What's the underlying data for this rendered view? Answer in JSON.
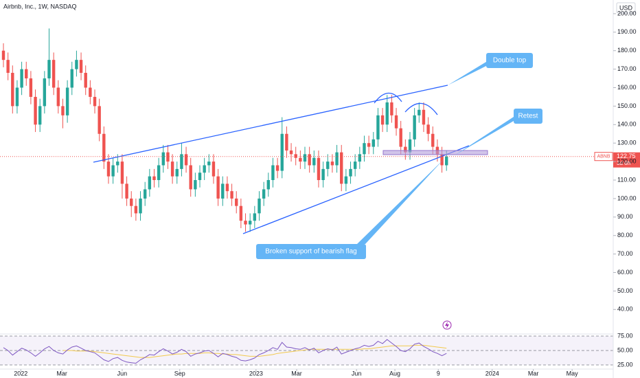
{
  "header": {
    "title": "Airbnb, Inc., 1W, NASDAQ",
    "currency": "USD"
  },
  "chart_data": {
    "type": "candlestick",
    "symbol": "ABNB",
    "countdown": "3d 6h",
    "up_color": "#26a69a",
    "down_color": "#ef5350",
    "candles": [
      [
        180,
        184,
        171,
        175
      ],
      [
        175,
        179,
        164,
        168
      ],
      [
        168,
        172,
        146,
        150
      ],
      [
        150,
        164,
        146,
        160
      ],
      [
        160,
        174,
        156,
        170
      ],
      [
        170,
        174,
        161,
        165
      ],
      [
        165,
        169,
        151,
        155
      ],
      [
        155,
        159,
        136,
        140
      ],
      [
        140,
        154,
        136,
        150
      ],
      [
        150,
        169,
        146,
        165
      ],
      [
        165,
        192,
        161,
        175
      ],
      [
        175,
        179,
        156,
        160
      ],
      [
        160,
        164,
        146,
        150
      ],
      [
        150,
        154,
        138,
        145
      ],
      [
        145,
        164,
        141,
        160
      ],
      [
        160,
        174,
        156,
        170
      ],
      [
        170,
        180,
        166,
        175
      ],
      [
        175,
        179,
        164,
        168
      ],
      [
        168,
        172,
        156,
        160
      ],
      [
        160,
        164,
        151,
        155
      ],
      [
        155,
        159,
        146,
        150
      ],
      [
        150,
        154,
        131,
        135
      ],
      [
        135,
        139,
        116,
        120
      ],
      [
        120,
        124,
        108,
        112
      ],
      [
        112,
        122,
        108,
        118
      ],
      [
        118,
        124,
        114,
        120
      ],
      [
        120,
        124,
        100,
        108
      ],
      [
        108,
        112,
        96,
        100
      ],
      [
        100,
        104,
        90,
        96
      ],
      [
        96,
        100,
        88,
        92
      ],
      [
        92,
        104,
        88,
        100
      ],
      [
        100,
        109,
        96,
        105
      ],
      [
        105,
        116,
        101,
        112
      ],
      [
        112,
        116,
        106,
        110
      ],
      [
        110,
        122,
        106,
        118
      ],
      [
        118,
        129,
        114,
        125
      ],
      [
        125,
        129,
        116,
        120
      ],
      [
        120,
        124,
        108,
        112
      ],
      [
        112,
        120,
        108,
        116
      ],
      [
        116,
        130,
        112,
        124
      ],
      [
        124,
        128,
        114,
        118
      ],
      [
        118,
        122,
        101,
        105
      ],
      [
        105,
        114,
        101,
        110
      ],
      [
        110,
        118,
        106,
        114
      ],
      [
        114,
        122,
        110,
        118
      ],
      [
        118,
        124,
        114,
        120
      ],
      [
        120,
        124,
        108,
        112
      ],
      [
        112,
        116,
        96,
        100
      ],
      [
        100,
        112,
        96,
        108
      ],
      [
        108,
        112,
        100,
        104
      ],
      [
        104,
        108,
        96,
        100
      ],
      [
        100,
        104,
        92,
        96
      ],
      [
        96,
        100,
        84,
        88
      ],
      [
        88,
        92,
        82,
        86
      ],
      [
        86,
        92,
        82,
        88
      ],
      [
        88,
        96,
        84,
        92
      ],
      [
        92,
        104,
        88,
        100
      ],
      [
        100,
        109,
        96,
        105
      ],
      [
        105,
        114,
        101,
        110
      ],
      [
        110,
        122,
        106,
        118
      ],
      [
        118,
        122,
        111,
        115
      ],
      [
        115,
        144,
        111,
        135
      ],
      [
        135,
        139,
        122,
        126
      ],
      [
        126,
        130,
        120,
        124
      ],
      [
        124,
        128,
        118,
        122
      ],
      [
        122,
        126,
        116,
        120
      ],
      [
        120,
        128,
        116,
        124
      ],
      [
        124,
        128,
        114,
        118
      ],
      [
        118,
        126,
        114,
        122
      ],
      [
        122,
        126,
        106,
        110
      ],
      [
        110,
        120,
        106,
        116
      ],
      [
        116,
        124,
        112,
        120
      ],
      [
        120,
        124,
        114,
        118
      ],
      [
        118,
        129,
        114,
        125
      ],
      [
        125,
        129,
        104,
        108
      ],
      [
        108,
        116,
        104,
        112
      ],
      [
        112,
        120,
        108,
        116
      ],
      [
        116,
        124,
        112,
        120
      ],
      [
        120,
        128,
        116,
        124
      ],
      [
        124,
        134,
        120,
        130
      ],
      [
        130,
        134,
        124,
        128
      ],
      [
        128,
        136,
        124,
        132
      ],
      [
        132,
        149,
        128,
        145
      ],
      [
        145,
        149,
        136,
        140
      ],
      [
        140,
        156,
        136,
        152
      ],
      [
        152,
        156,
        141,
        145
      ],
      [
        145,
        149,
        134,
        138
      ],
      [
        138,
        142,
        124,
        128
      ],
      [
        128,
        132,
        121,
        125
      ],
      [
        125,
        136,
        121,
        132
      ],
      [
        132,
        149,
        128,
        145
      ],
      [
        145,
        152,
        141,
        148
      ],
      [
        148,
        152,
        136,
        140
      ],
      [
        140,
        144,
        131,
        135
      ],
      [
        135,
        139,
        124,
        128
      ],
      [
        128,
        132,
        120,
        124
      ],
      [
        124,
        128,
        114,
        118
      ],
      [
        118,
        126,
        115,
        122.75
      ]
    ],
    "xlim": [
      -0.75,
      133.5
    ],
    "xticks": [
      {
        "value": 3.8,
        "label": "2022"
      },
      {
        "value": 12.8,
        "label": "Mar"
      },
      {
        "value": 26,
        "label": "Jun"
      },
      {
        "value": 38.6,
        "label": "Sep"
      },
      {
        "value": 55.3,
        "label": "2023"
      },
      {
        "value": 64.2,
        "label": "Mar"
      },
      {
        "value": 77.3,
        "label": "Jun"
      },
      {
        "value": 85.7,
        "label": "Aug"
      },
      {
        "value": 95.2,
        "label": "9"
      },
      {
        "value": 107,
        "label": "2024"
      },
      {
        "value": 116,
        "label": "Mar"
      },
      {
        "value": 124.5,
        "label": "May"
      }
    ],
    "ylim": [
      27.1,
      207.4
    ],
    "yticks": [
      {
        "value": 40,
        "label": "40.00"
      },
      {
        "value": 50,
        "label": "50.00"
      },
      {
        "value": 60,
        "label": "60.00"
      },
      {
        "value": 70,
        "label": "70.00"
      },
      {
        "value": 80,
        "label": "80.00"
      },
      {
        "value": 90,
        "label": "90.00"
      },
      {
        "value": 100,
        "label": "100.00"
      },
      {
        "value": 110,
        "label": "110.00"
      },
      {
        "value": 120,
        "label": "120.00"
      },
      {
        "value": 130,
        "label": "130.00"
      },
      {
        "value": 140,
        "label": "140.00"
      },
      {
        "value": 150,
        "label": "150.00"
      },
      {
        "value": 160,
        "label": "160.00"
      },
      {
        "value": 170,
        "label": "170.00"
      },
      {
        "value": 180,
        "label": "180.00"
      },
      {
        "value": 190,
        "label": "190.00"
      },
      {
        "value": 200,
        "label": "200.00"
      }
    ],
    "grid": false,
    "annotations": [
      "Double top",
      "Retest",
      "Broken support of bearish flag"
    ],
    "rsi": {
      "color": "#7e57c2",
      "ma_color": "#f2c94c",
      "values": [
        55,
        50,
        42,
        48,
        54,
        51,
        46,
        40,
        46,
        53,
        57,
        50,
        46,
        44,
        51,
        56,
        58,
        54,
        50,
        48,
        46,
        40,
        34,
        31,
        36,
        38,
        33,
        30,
        29,
        28,
        34,
        38,
        43,
        42,
        48,
        53,
        49,
        44,
        47,
        52,
        48,
        40,
        44,
        46,
        49,
        50,
        45,
        39,
        45,
        43,
        40,
        38,
        33,
        32,
        34,
        37,
        43,
        46,
        50,
        55,
        52,
        64,
        56,
        55,
        53,
        52,
        55,
        51,
        54,
        46,
        50,
        53,
        51,
        56,
        44,
        47,
        50,
        53,
        55,
        59,
        57,
        59,
        66,
        62,
        69,
        63,
        57,
        50,
        48,
        53,
        61,
        63,
        57,
        53,
        48,
        45,
        41,
        45
      ],
      "ma": [
        null,
        null,
        null,
        null,
        null,
        null,
        null,
        null,
        null,
        null,
        null,
        null,
        null,
        50,
        50,
        50,
        49,
        49,
        49,
        49,
        48,
        47,
        46,
        45,
        44,
        43,
        42,
        41,
        40,
        39,
        38,
        38,
        38,
        39,
        40,
        41,
        42,
        43,
        44,
        44,
        45,
        45,
        45,
        45,
        46,
        46,
        45,
        45,
        44,
        44,
        43,
        43,
        42,
        41,
        40,
        40,
        40,
        41,
        42,
        43,
        45,
        46,
        47,
        48,
        49,
        50,
        51,
        52,
        52,
        52,
        52,
        52,
        52,
        52,
        52,
        52,
        52,
        52,
        52,
        53,
        53,
        54,
        55,
        56,
        57,
        58,
        58,
        58,
        58,
        58,
        59,
        59,
        59,
        58,
        57,
        56,
        55,
        54
      ],
      "ylim": [
        17.9,
        84.5
      ],
      "yticks": [
        {
          "value": 75,
          "label": "75.00"
        },
        {
          "value": 50,
          "label": "50.00"
        },
        {
          "value": 25,
          "label": "25.00"
        }
      ]
    }
  }
}
